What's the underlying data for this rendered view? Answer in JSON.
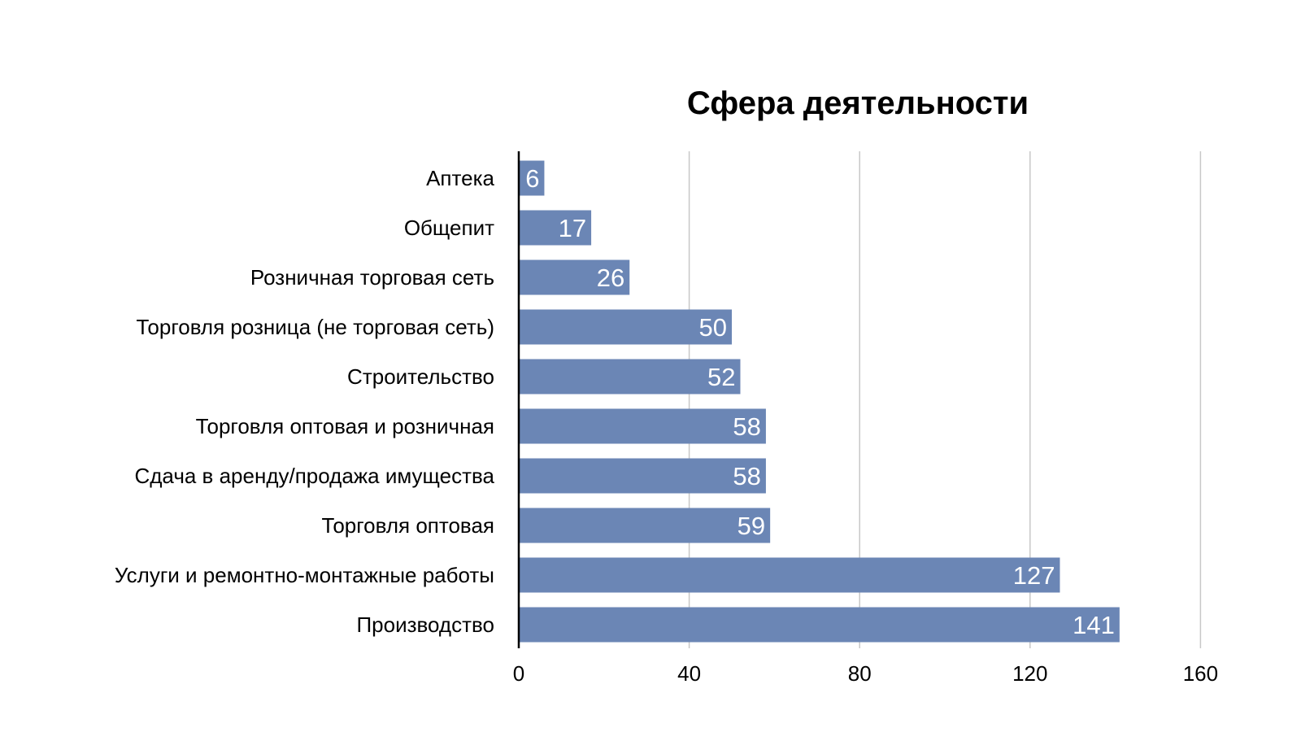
{
  "chart_data": {
    "type": "bar",
    "orientation": "horizontal",
    "title": "Сфера деятельности",
    "xlabel": "",
    "ylabel": "",
    "categories": [
      "Аптека",
      "Общепит",
      "Розничная торговая сеть",
      "Торговля розница (не торговая сеть)",
      "Строительство",
      "Торговля оптовая и розничная",
      "Сдача в аренду/продажа имущества",
      "Торговля оптовая",
      "Услуги и ремонтно-монтажные работы",
      "Производство"
    ],
    "values": [
      6,
      17,
      26,
      50,
      52,
      58,
      58,
      59,
      127,
      141
    ],
    "xlim": [
      0,
      160
    ],
    "xticks": [
      "0",
      "40",
      "80",
      "120",
      "160"
    ],
    "grid": "vertical",
    "legend": "none",
    "colors": {
      "bar": "#6b86b5",
      "value_label": "#ffffff",
      "gridline": "#c8c8c8",
      "axis": "#000000"
    }
  }
}
